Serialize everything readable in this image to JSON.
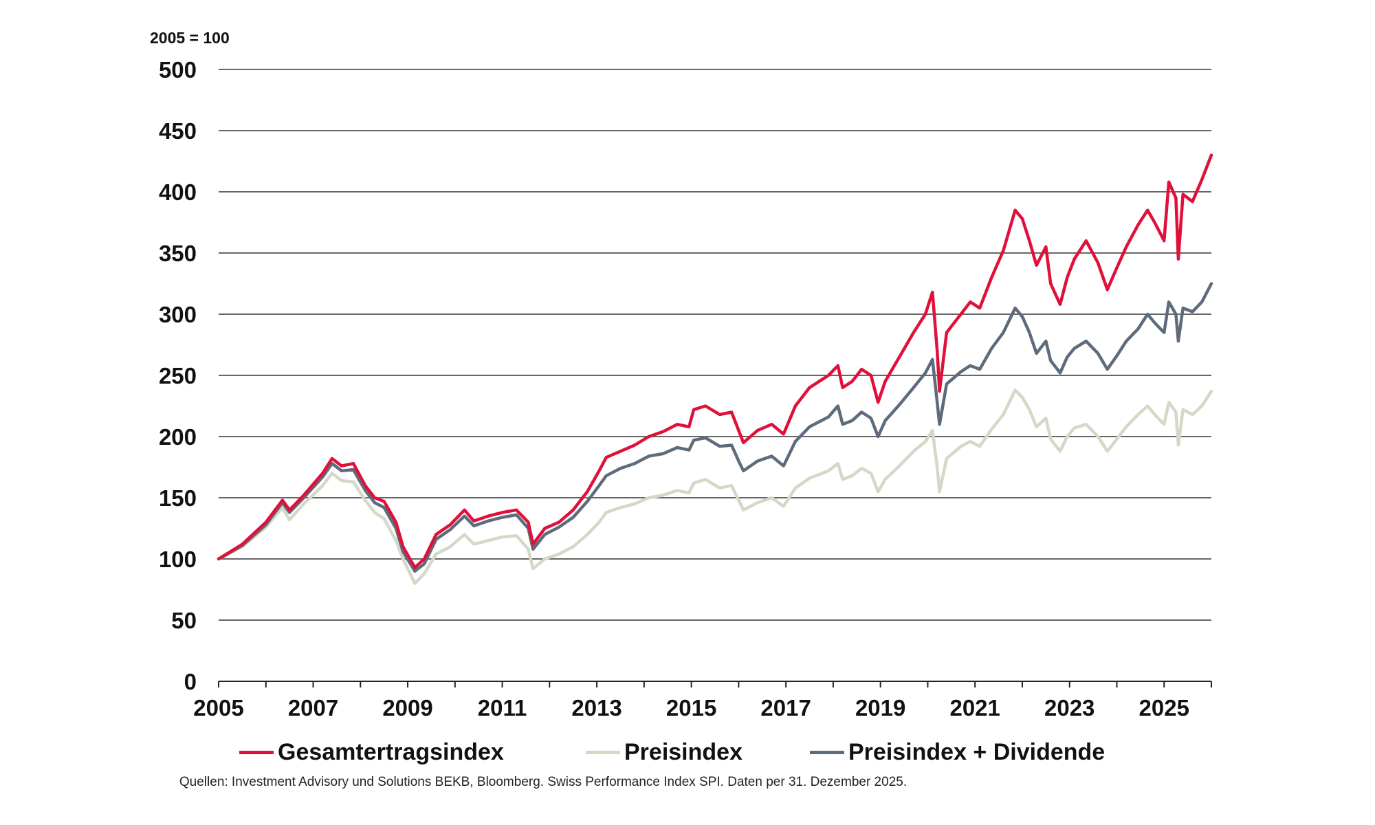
{
  "chart_data": {
    "type": "line",
    "title": "",
    "unit_label": "2005 = 100",
    "xlabel": "",
    "ylabel": "",
    "xlim": [
      2005.0,
      2026.0
    ],
    "ylim": [
      0,
      500
    ],
    "x_ticks": [
      "2005",
      "2007",
      "2009",
      "2011",
      "2013",
      "2015",
      "2017",
      "2019",
      "2021",
      "2023",
      "2025"
    ],
    "y_ticks": [
      "0",
      "50",
      "100",
      "150",
      "200",
      "250",
      "300",
      "350",
      "400",
      "450",
      "500"
    ],
    "grid": "horizontal",
    "legend_position": "bottom",
    "source": "Quellen: Investment Advisory und Solutions BEKB, Bloomberg. Swiss Performance Index SPI. Daten per 31. Dezember 2025.",
    "series": [
      {
        "name": "Gesamtertragsindex",
        "color": "#e0103a",
        "points": [
          [
            2005.0,
            100
          ],
          [
            2005.5,
            112
          ],
          [
            2006.0,
            130
          ],
          [
            2006.35,
            148
          ],
          [
            2006.5,
            140
          ],
          [
            2006.8,
            152
          ],
          [
            2007.2,
            170
          ],
          [
            2007.4,
            182
          ],
          [
            2007.6,
            176
          ],
          [
            2007.85,
            178
          ],
          [
            2008.1,
            160
          ],
          [
            2008.3,
            150
          ],
          [
            2008.5,
            147
          ],
          [
            2008.75,
            130
          ],
          [
            2008.9,
            110
          ],
          [
            2009.15,
            93
          ],
          [
            2009.35,
            100
          ],
          [
            2009.6,
            120
          ],
          [
            2009.9,
            128
          ],
          [
            2010.2,
            140
          ],
          [
            2010.4,
            131
          ],
          [
            2010.7,
            135
          ],
          [
            2011.0,
            138
          ],
          [
            2011.3,
            140
          ],
          [
            2011.55,
            130
          ],
          [
            2011.65,
            112
          ],
          [
            2011.9,
            125
          ],
          [
            2012.2,
            130
          ],
          [
            2012.5,
            140
          ],
          [
            2012.8,
            155
          ],
          [
            2013.05,
            172
          ],
          [
            2013.2,
            183
          ],
          [
            2013.5,
            188
          ],
          [
            2013.8,
            193
          ],
          [
            2014.1,
            200
          ],
          [
            2014.4,
            204
          ],
          [
            2014.7,
            210
          ],
          [
            2014.95,
            208
          ],
          [
            2015.05,
            222
          ],
          [
            2015.3,
            225
          ],
          [
            2015.6,
            218
          ],
          [
            2015.85,
            220
          ],
          [
            2016.0,
            205
          ],
          [
            2016.1,
            195
          ],
          [
            2016.4,
            205
          ],
          [
            2016.7,
            210
          ],
          [
            2016.95,
            202
          ],
          [
            2017.2,
            225
          ],
          [
            2017.5,
            240
          ],
          [
            2017.9,
            250
          ],
          [
            2018.1,
            258
          ],
          [
            2018.2,
            240
          ],
          [
            2018.4,
            245
          ],
          [
            2018.6,
            255
          ],
          [
            2018.8,
            250
          ],
          [
            2018.95,
            228
          ],
          [
            2019.1,
            245
          ],
          [
            2019.4,
            265
          ],
          [
            2019.7,
            285
          ],
          [
            2019.95,
            300
          ],
          [
            2020.1,
            318
          ],
          [
            2020.2,
            270
          ],
          [
            2020.25,
            237
          ],
          [
            2020.4,
            285
          ],
          [
            2020.7,
            300
          ],
          [
            2020.9,
            310
          ],
          [
            2021.1,
            305
          ],
          [
            2021.35,
            330
          ],
          [
            2021.6,
            352
          ],
          [
            2021.85,
            385
          ],
          [
            2022.0,
            378
          ],
          [
            2022.15,
            360
          ],
          [
            2022.3,
            340
          ],
          [
            2022.5,
            355
          ],
          [
            2022.6,
            325
          ],
          [
            2022.8,
            308
          ],
          [
            2022.95,
            330
          ],
          [
            2023.1,
            345
          ],
          [
            2023.35,
            360
          ],
          [
            2023.6,
            342
          ],
          [
            2023.8,
            320
          ],
          [
            2024.0,
            338
          ],
          [
            2024.2,
            355
          ],
          [
            2024.45,
            373
          ],
          [
            2024.65,
            385
          ],
          [
            2024.8,
            375
          ],
          [
            2025.0,
            360
          ],
          [
            2025.1,
            408
          ],
          [
            2025.25,
            395
          ],
          [
            2025.3,
            345
          ],
          [
            2025.4,
            398
          ],
          [
            2025.6,
            392
          ],
          [
            2025.8,
            410
          ],
          [
            2026.0,
            430
          ]
        ]
      },
      {
        "name": "Preisindex",
        "color": "#d4d8c6",
        "points": [
          [
            2005.0,
            100
          ],
          [
            2005.5,
            110
          ],
          [
            2006.0,
            126
          ],
          [
            2006.35,
            142
          ],
          [
            2006.5,
            132
          ],
          [
            2006.8,
            145
          ],
          [
            2007.2,
            160
          ],
          [
            2007.4,
            170
          ],
          [
            2007.6,
            164
          ],
          [
            2007.85,
            163
          ],
          [
            2008.1,
            148
          ],
          [
            2008.3,
            138
          ],
          [
            2008.5,
            133
          ],
          [
            2008.75,
            115
          ],
          [
            2008.9,
            100
          ],
          [
            2009.15,
            80
          ],
          [
            2009.35,
            88
          ],
          [
            2009.6,
            104
          ],
          [
            2009.9,
            110
          ],
          [
            2010.2,
            120
          ],
          [
            2010.4,
            112
          ],
          [
            2010.7,
            115
          ],
          [
            2011.0,
            118
          ],
          [
            2011.3,
            119
          ],
          [
            2011.55,
            108
          ],
          [
            2011.65,
            92
          ],
          [
            2011.9,
            100
          ],
          [
            2012.2,
            104
          ],
          [
            2012.5,
            110
          ],
          [
            2012.8,
            120
          ],
          [
            2013.05,
            130
          ],
          [
            2013.2,
            138
          ],
          [
            2013.5,
            142
          ],
          [
            2013.8,
            145
          ],
          [
            2014.1,
            150
          ],
          [
            2014.4,
            152
          ],
          [
            2014.7,
            156
          ],
          [
            2014.95,
            154
          ],
          [
            2015.05,
            162
          ],
          [
            2015.3,
            165
          ],
          [
            2015.6,
            158
          ],
          [
            2015.85,
            160
          ],
          [
            2016.0,
            148
          ],
          [
            2016.1,
            140
          ],
          [
            2016.4,
            146
          ],
          [
            2016.7,
            150
          ],
          [
            2016.95,
            143
          ],
          [
            2017.2,
            158
          ],
          [
            2017.5,
            166
          ],
          [
            2017.9,
            172
          ],
          [
            2018.1,
            178
          ],
          [
            2018.2,
            165
          ],
          [
            2018.4,
            168
          ],
          [
            2018.6,
            174
          ],
          [
            2018.8,
            170
          ],
          [
            2018.95,
            155
          ],
          [
            2019.1,
            165
          ],
          [
            2019.4,
            176
          ],
          [
            2019.7,
            188
          ],
          [
            2019.95,
            196
          ],
          [
            2020.1,
            205
          ],
          [
            2020.2,
            175
          ],
          [
            2020.25,
            155
          ],
          [
            2020.4,
            182
          ],
          [
            2020.7,
            192
          ],
          [
            2020.9,
            196
          ],
          [
            2021.1,
            192
          ],
          [
            2021.35,
            206
          ],
          [
            2021.6,
            218
          ],
          [
            2021.85,
            238
          ],
          [
            2022.0,
            232
          ],
          [
            2022.15,
            222
          ],
          [
            2022.3,
            208
          ],
          [
            2022.5,
            215
          ],
          [
            2022.6,
            198
          ],
          [
            2022.8,
            188
          ],
          [
            2022.95,
            200
          ],
          [
            2023.1,
            207
          ],
          [
            2023.35,
            210
          ],
          [
            2023.6,
            200
          ],
          [
            2023.8,
            188
          ],
          [
            2024.0,
            198
          ],
          [
            2024.2,
            208
          ],
          [
            2024.45,
            218
          ],
          [
            2024.65,
            225
          ],
          [
            2024.8,
            218
          ],
          [
            2025.0,
            210
          ],
          [
            2025.1,
            228
          ],
          [
            2025.25,
            220
          ],
          [
            2025.3,
            193
          ],
          [
            2025.4,
            222
          ],
          [
            2025.6,
            218
          ],
          [
            2025.8,
            225
          ],
          [
            2026.0,
            237
          ]
        ]
      },
      {
        "name": "Preisindex + Dividende",
        "color": "#5e6b7b",
        "points": [
          [
            2005.0,
            100
          ],
          [
            2005.5,
            111
          ],
          [
            2006.0,
            128
          ],
          [
            2006.35,
            146
          ],
          [
            2006.5,
            138
          ],
          [
            2006.8,
            150
          ],
          [
            2007.2,
            167
          ],
          [
            2007.4,
            178
          ],
          [
            2007.6,
            172
          ],
          [
            2007.85,
            173
          ],
          [
            2008.1,
            156
          ],
          [
            2008.3,
            146
          ],
          [
            2008.5,
            142
          ],
          [
            2008.75,
            125
          ],
          [
            2008.9,
            106
          ],
          [
            2009.15,
            90
          ],
          [
            2009.35,
            96
          ],
          [
            2009.6,
            116
          ],
          [
            2009.9,
            124
          ],
          [
            2010.2,
            135
          ],
          [
            2010.4,
            127
          ],
          [
            2010.7,
            131
          ],
          [
            2011.0,
            134
          ],
          [
            2011.3,
            136
          ],
          [
            2011.55,
            125
          ],
          [
            2011.65,
            108
          ],
          [
            2011.9,
            120
          ],
          [
            2012.2,
            126
          ],
          [
            2012.5,
            134
          ],
          [
            2012.8,
            147
          ],
          [
            2013.05,
            160
          ],
          [
            2013.2,
            168
          ],
          [
            2013.5,
            174
          ],
          [
            2013.8,
            178
          ],
          [
            2014.1,
            184
          ],
          [
            2014.4,
            186
          ],
          [
            2014.7,
            191
          ],
          [
            2014.95,
            189
          ],
          [
            2015.05,
            197
          ],
          [
            2015.3,
            199
          ],
          [
            2015.6,
            192
          ],
          [
            2015.85,
            193
          ],
          [
            2016.0,
            180
          ],
          [
            2016.1,
            172
          ],
          [
            2016.4,
            180
          ],
          [
            2016.7,
            184
          ],
          [
            2016.95,
            176
          ],
          [
            2017.2,
            196
          ],
          [
            2017.5,
            208
          ],
          [
            2017.9,
            216
          ],
          [
            2018.1,
            225
          ],
          [
            2018.2,
            210
          ],
          [
            2018.4,
            213
          ],
          [
            2018.6,
            220
          ],
          [
            2018.8,
            215
          ],
          [
            2018.95,
            200
          ],
          [
            2019.1,
            213
          ],
          [
            2019.4,
            226
          ],
          [
            2019.7,
            240
          ],
          [
            2019.95,
            252
          ],
          [
            2020.1,
            263
          ],
          [
            2020.2,
            228
          ],
          [
            2020.25,
            210
          ],
          [
            2020.4,
            243
          ],
          [
            2020.7,
            253
          ],
          [
            2020.9,
            258
          ],
          [
            2021.1,
            255
          ],
          [
            2021.35,
            272
          ],
          [
            2021.6,
            285
          ],
          [
            2021.85,
            305
          ],
          [
            2022.0,
            298
          ],
          [
            2022.15,
            285
          ],
          [
            2022.3,
            268
          ],
          [
            2022.5,
            278
          ],
          [
            2022.6,
            262
          ],
          [
            2022.8,
            252
          ],
          [
            2022.95,
            265
          ],
          [
            2023.1,
            272
          ],
          [
            2023.35,
            278
          ],
          [
            2023.6,
            268
          ],
          [
            2023.8,
            255
          ],
          [
            2024.0,
            266
          ],
          [
            2024.2,
            278
          ],
          [
            2024.45,
            288
          ],
          [
            2024.65,
            300
          ],
          [
            2024.8,
            293
          ],
          [
            2025.0,
            285
          ],
          [
            2025.1,
            310
          ],
          [
            2025.25,
            300
          ],
          [
            2025.3,
            278
          ],
          [
            2025.4,
            305
          ],
          [
            2025.6,
            302
          ],
          [
            2025.8,
            310
          ],
          [
            2026.0,
            325
          ]
        ]
      }
    ]
  }
}
